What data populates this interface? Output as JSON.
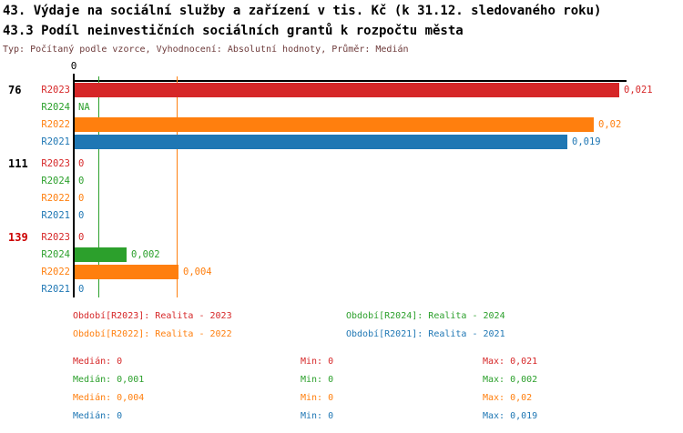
{
  "title": "43. Výdaje na sociální služby a zařízení v tis. Kč (k 31.12. sledovaného roku)",
  "subtitle": "43.3 Podíl neinvestičních sociálních grantů k rozpočtu města",
  "meta": "Typ: Počítaný podle vzorce, Vyhodnocení: Absolutní hodnoty, Průměr: Medián",
  "colors": {
    "R2023": "#d62728",
    "R2024": "#2ca02c",
    "R2022": "#ff7f0e",
    "R2021": "#1f77b4",
    "group_alert": "#cc0000",
    "group_normal": "#000000",
    "meta_text": "#6e3b3b"
  },
  "chart_data": {
    "type": "bar",
    "orientation": "horizontal",
    "title": "43.3 Podíl neinvestičních sociálních grantů k rozpočtu města",
    "axis": {
      "tick_label": "0",
      "min": 0,
      "max": 0.021
    },
    "grid": "off",
    "median_lines": [
      {
        "series": "R2024",
        "value": 0.001
      },
      {
        "series": "R2022",
        "value": 0.004
      }
    ],
    "groups": [
      {
        "label": "76",
        "alert": false,
        "rows": [
          {
            "series": "R2023",
            "value": 0.021,
            "display": "0,021"
          },
          {
            "series": "R2024",
            "value": null,
            "display": "NA"
          },
          {
            "series": "R2022",
            "value": 0.02,
            "display": "0,02"
          },
          {
            "series": "R2021",
            "value": 0.019,
            "display": "0,019"
          }
        ]
      },
      {
        "label": "111",
        "alert": false,
        "rows": [
          {
            "series": "R2023",
            "value": 0,
            "display": "0"
          },
          {
            "series": "R2024",
            "value": 0,
            "display": "0"
          },
          {
            "series": "R2022",
            "value": 0,
            "display": "0"
          },
          {
            "series": "R2021",
            "value": 0,
            "display": "0"
          }
        ]
      },
      {
        "label": "139",
        "alert": true,
        "rows": [
          {
            "series": "R2023",
            "value": 0,
            "display": "0"
          },
          {
            "series": "R2024",
            "value": 0.002,
            "display": "0,002"
          },
          {
            "series": "R2022",
            "value": 0.004,
            "display": "0,004"
          },
          {
            "series": "R2021",
            "value": 0,
            "display": "0"
          }
        ]
      }
    ],
    "legend": [
      {
        "series": "R2023",
        "label": "Období[R2023]: Realita - 2023"
      },
      {
        "series": "R2024",
        "label": "Období[R2024]: Realita - 2024"
      },
      {
        "series": "R2022",
        "label": "Období[R2022]: Realita - 2022"
      },
      {
        "series": "R2021",
        "label": "Období[R2021]: Realita - 2021"
      }
    ],
    "legend_position": "bottom",
    "stats": [
      {
        "series": "R2023",
        "median": "Medián: 0",
        "min": "Min: 0",
        "max": "Max: 0,021"
      },
      {
        "series": "R2024",
        "median": "Medián: 0,001",
        "min": "Min: 0",
        "max": "Max: 0,002"
      },
      {
        "series": "R2022",
        "median": "Medián: 0,004",
        "min": "Min: 0",
        "max": "Max: 0,02"
      },
      {
        "series": "R2021",
        "median": "Medián: 0",
        "min": "Min: 0",
        "max": "Max: 0,019"
      }
    ]
  }
}
